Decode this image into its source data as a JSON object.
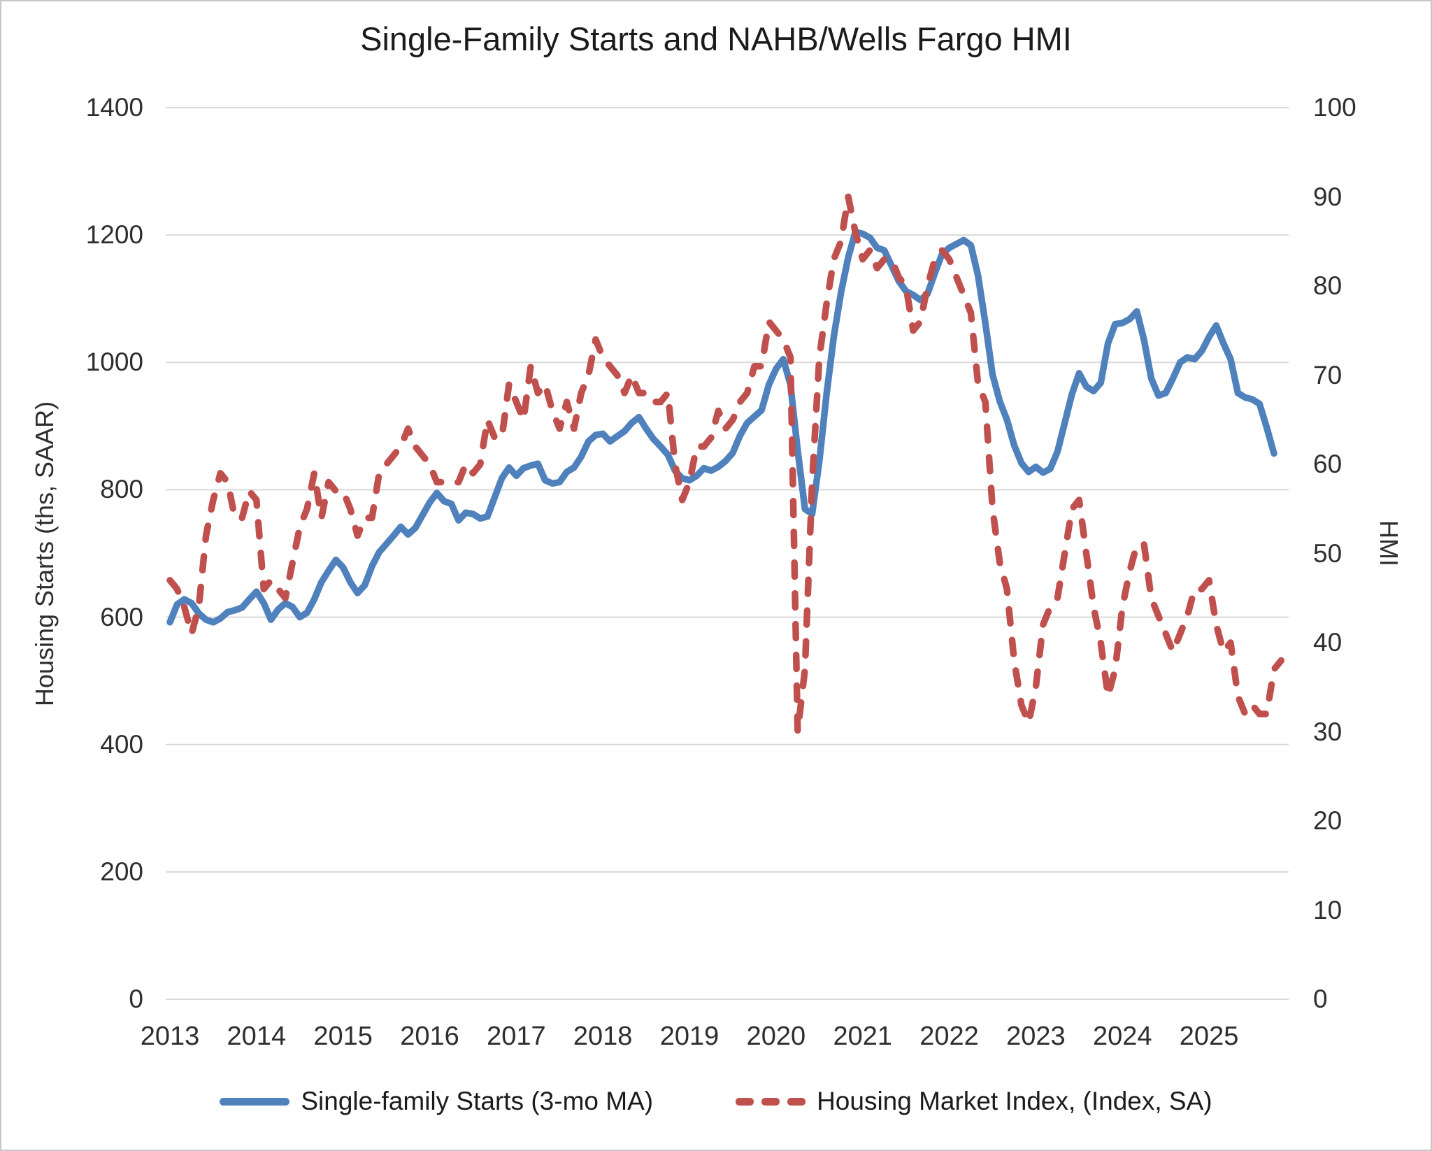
{
  "header": {
    "title": "Single-Family Starts and NAHB/Wells Fargo HMI"
  },
  "axes": {
    "left": {
      "title": "Housing Starts (ths, SAAR)",
      "range": [
        0,
        1400
      ],
      "ticks": [
        0,
        200,
        400,
        600,
        800,
        1000,
        1200,
        1400
      ]
    },
    "right": {
      "title": "HMI",
      "range": [
        0,
        100
      ],
      "ticks": [
        0,
        10,
        20,
        30,
        40,
        50,
        60,
        70,
        80,
        90,
        100
      ]
    },
    "x": {
      "tick_labels": [
        "2013",
        "2014",
        "2015",
        "2016",
        "2017",
        "2018",
        "2019",
        "2020",
        "2021",
        "2022",
        "2023",
        "2024",
        "2025"
      ]
    }
  },
  "legend": [
    {
      "label": "Single-family Starts (3-mo MA)",
      "color": "#4F81BD",
      "style": "solid"
    },
    {
      "label": "Housing Market Index, (Index, SA)",
      "color": "#C0504D",
      "style": "dashed"
    }
  ],
  "colors": {
    "starts_line": "#4F81BD",
    "hmi_line": "#C0504D",
    "gridline": "#D9D9D9",
    "text": "#2e2e2e",
    "background": "#ffffff"
  },
  "chart_data": {
    "type": "line",
    "title": "Single-Family Starts and NAHB/Wells Fargo HMI",
    "x": {
      "start": "2013-01",
      "frequency": "monthly"
    },
    "x_tick_labels": [
      "2013",
      "2014",
      "2015",
      "2016",
      "2017",
      "2018",
      "2019",
      "2020",
      "2021",
      "2022",
      "2023",
      "2024",
      "2025"
    ],
    "y_left": {
      "label": "Housing Starts (ths, SAAR)",
      "range": [
        0,
        1400
      ],
      "tick_step": 200
    },
    "y_right": {
      "label": "HMI",
      "range": [
        0,
        100
      ],
      "tick_step": 10
    },
    "grid": true,
    "legend_position": "bottom",
    "series": [
      {
        "name": "Single-family Starts (3-mo MA)",
        "axis": "left",
        "style": "solid",
        "color": "#4F81BD",
        "last_month": "2025-10",
        "values": [
          592,
          620,
          628,
          622,
          606,
          596,
          592,
          598,
          608,
          611,
          615,
          628,
          640,
          622,
          596,
          612,
          622,
          616,
          600,
          607,
          628,
          655,
          673,
          690,
          678,
          655,
          638,
          650,
          680,
          702,
          715,
          728,
          742,
          730,
          740,
          760,
          780,
          795,
          782,
          778,
          752,
          764,
          762,
          755,
          758,
          788,
          818,
          835,
          822,
          834,
          838,
          841,
          815,
          810,
          812,
          828,
          835,
          852,
          876,
          886,
          888,
          876,
          884,
          892,
          905,
          914,
          896,
          880,
          868,
          855,
          830,
          818,
          815,
          822,
          834,
          830,
          836,
          845,
          858,
          885,
          905,
          915,
          925,
          965,
          990,
          1005,
          965,
          862,
          770,
          762,
          845,
          950,
          1040,
          1110,
          1165,
          1205,
          1202,
          1196,
          1180,
          1176,
          1152,
          1128,
          1112,
          1106,
          1098,
          1108,
          1140,
          1170,
          1180,
          1186,
          1192,
          1184,
          1136,
          1062,
          981,
          939,
          910,
          870,
          842,
          828,
          836,
          827,
          833,
          860,
          905,
          950,
          983,
          962,
          955,
          968,
          1030,
          1060,
          1062,
          1068,
          1080,
          1035,
          975,
          948,
          952,
          975,
          1000,
          1008,
          1005,
          1018,
          1040,
          1058,
          1030,
          1005,
          952,
          945,
          942,
          935,
          898,
          857
        ]
      },
      {
        "name": "Housing Market Index, (Index, SA)",
        "axis": "right",
        "style": "dashed",
        "color": "#C0504D",
        "last_month": "2025-11",
        "values": [
          47,
          46,
          44,
          41,
          44,
          52,
          56,
          59,
          58,
          54,
          54,
          57,
          56,
          46,
          47,
          46,
          45,
          49,
          53,
          55,
          59,
          54,
          58,
          57,
          57,
          55,
          52,
          54,
          54,
          59,
          60,
          61,
          62,
          64,
          62,
          61,
          60,
          58,
          58,
          58,
          58,
          60,
          59,
          60,
          65,
          63,
          63,
          69,
          67,
          65,
          71,
          68,
          69,
          66,
          64,
          67,
          64,
          68,
          70,
          74,
          72,
          71,
          70,
          68,
          70,
          68,
          68,
          67,
          67,
          68,
          60,
          56,
          58,
          62,
          62,
          63,
          66,
          64,
          65,
          67,
          68,
          71,
          71,
          76,
          75,
          74,
          72,
          30,
          37,
          58,
          72,
          78,
          83,
          85,
          90,
          86,
          83,
          84,
          82,
          83,
          83,
          81,
          80,
          75,
          76,
          80,
          83,
          84,
          83,
          81,
          79,
          77,
          69,
          67,
          55,
          49,
          46,
          38,
          33,
          31,
          35,
          42,
          44,
          45,
          50,
          55,
          56,
          50,
          44,
          40,
          34,
          37,
          44,
          48,
          51,
          51,
          45,
          43,
          41,
          39,
          41,
          43,
          46,
          46,
          47,
          42,
          39,
          40,
          34,
          32,
          33,
          32,
          32,
          37,
          38
        ]
      }
    ]
  }
}
